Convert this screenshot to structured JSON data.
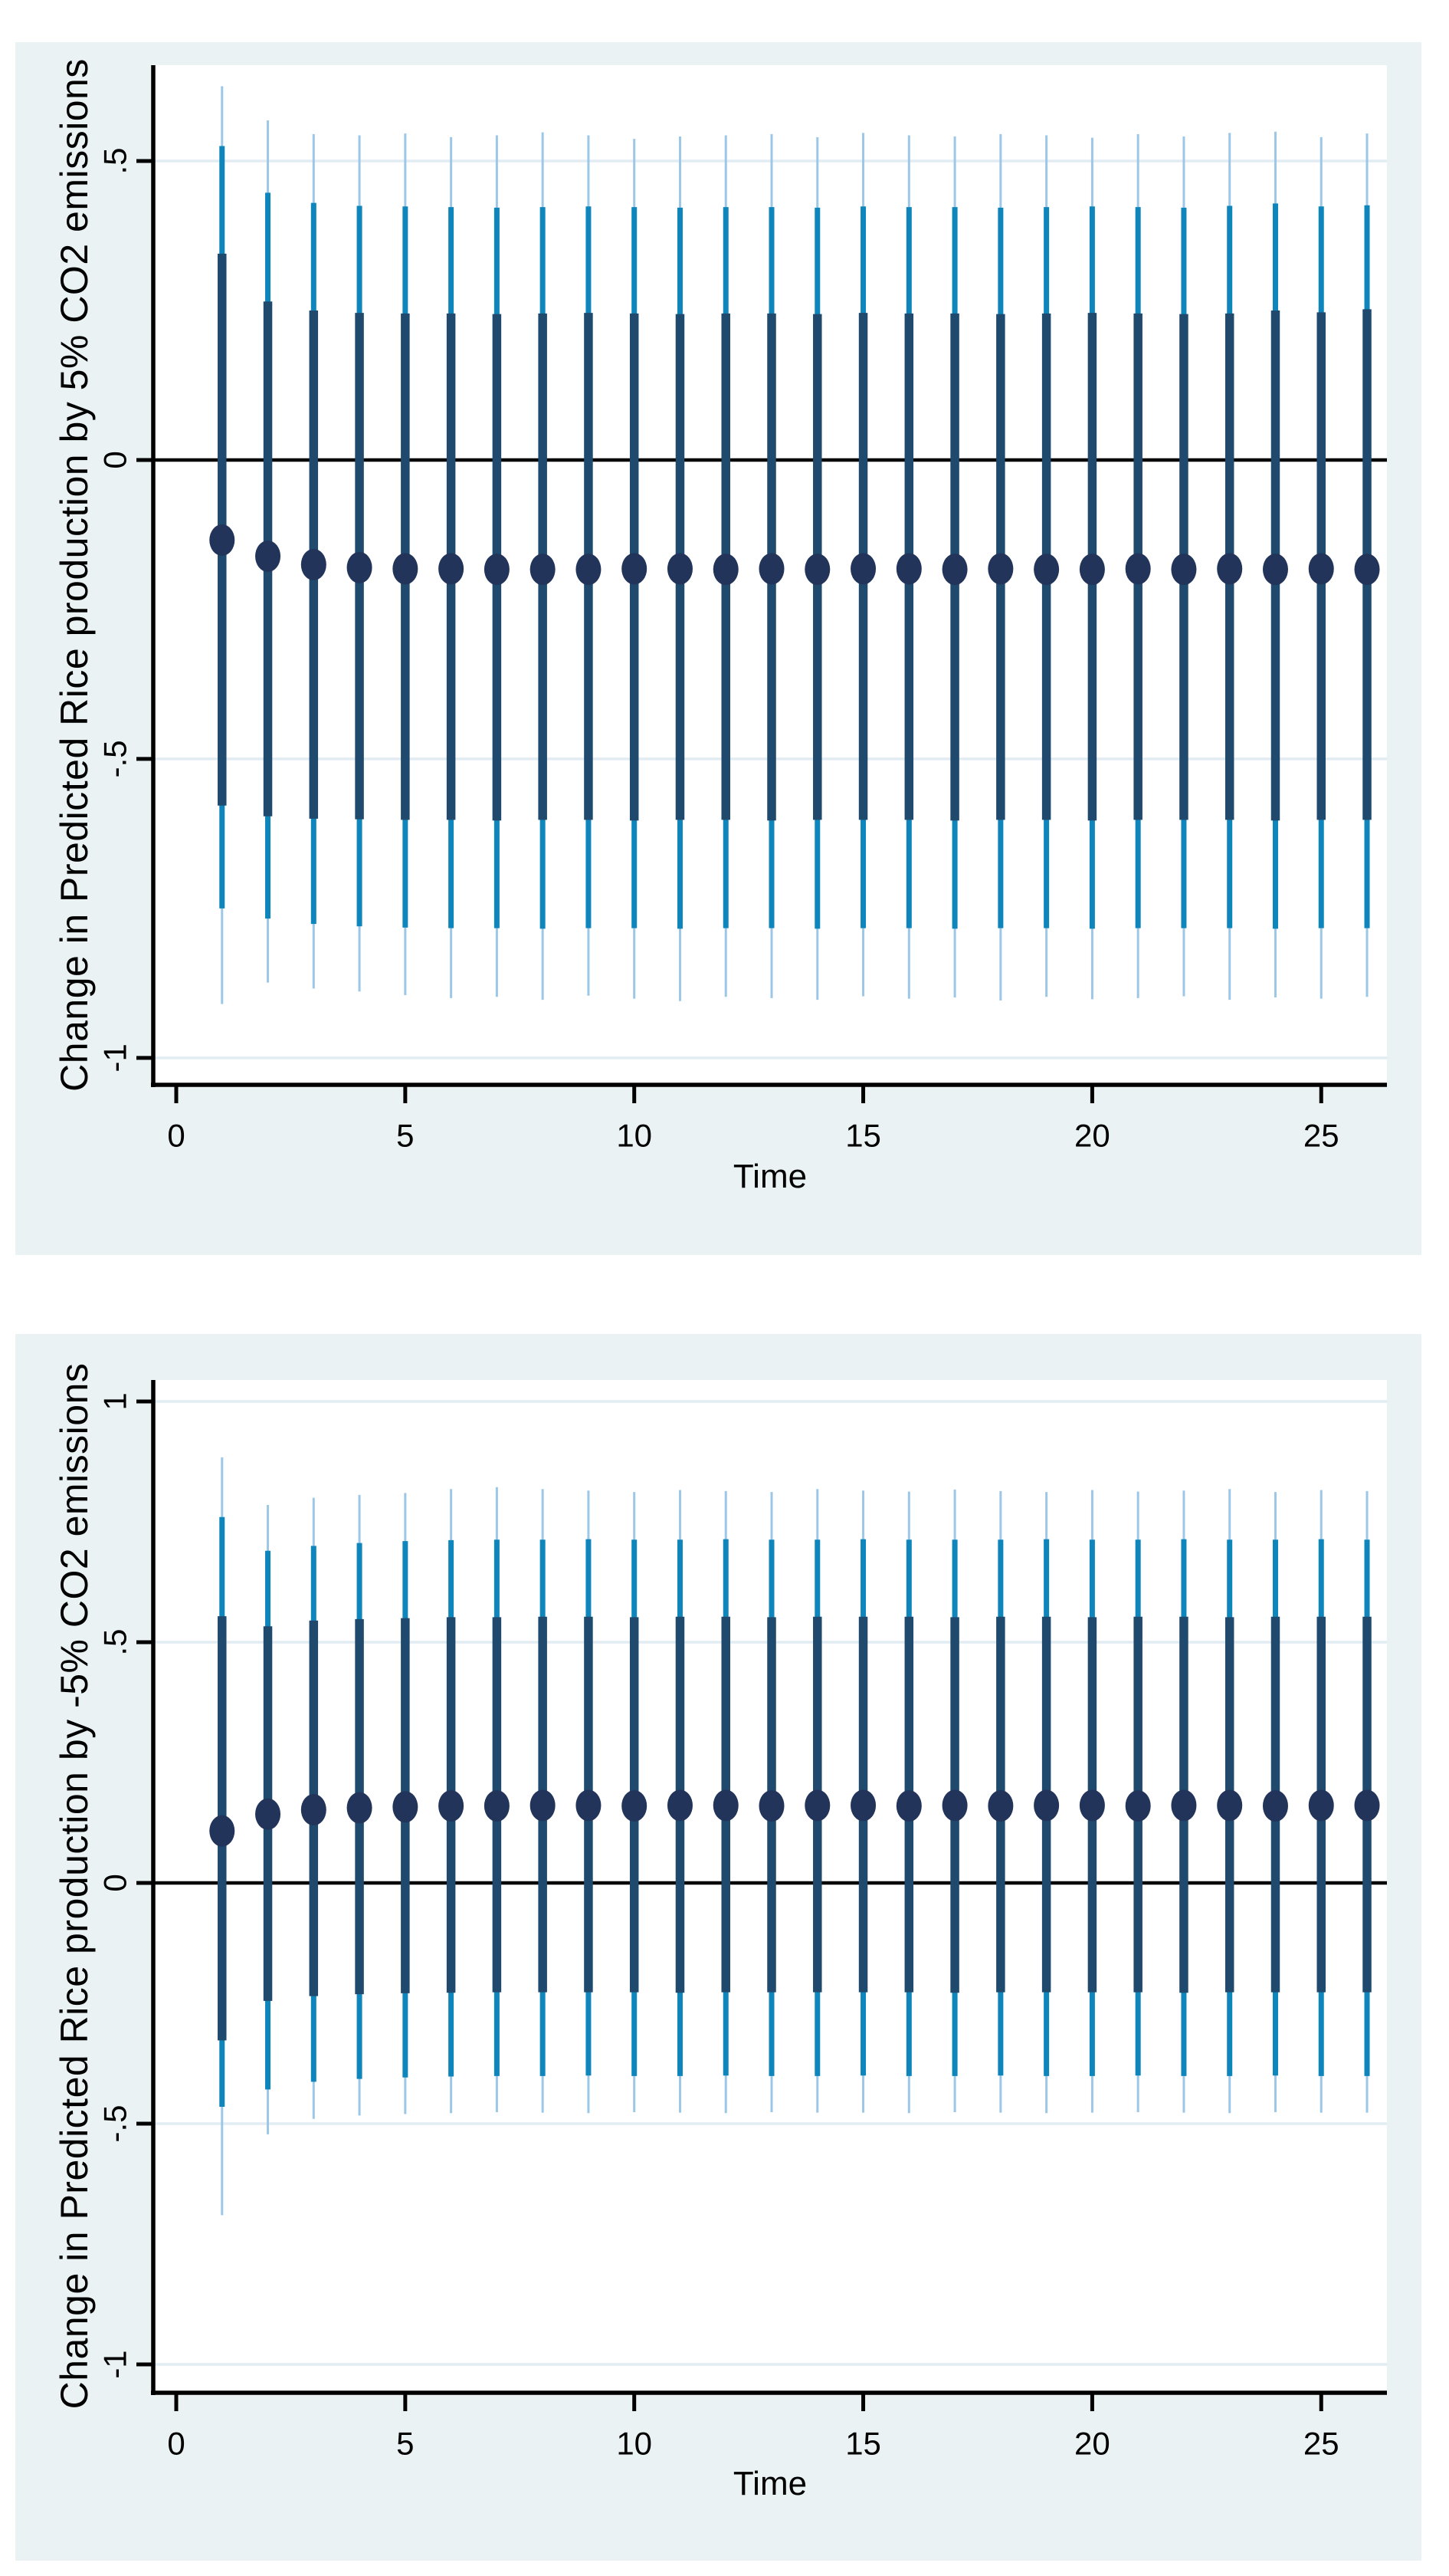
{
  "page": {
    "background": "#ffffff"
  },
  "colors": {
    "figure_bg": "#eaf2f3",
    "plot_bg": "#ffffff",
    "gridline": "#e2ecf3",
    "outer_ci": "#9cc7e7",
    "mid_ci": "#0e85bb",
    "inner_ci": "#1f4a6d",
    "point": "#22345a",
    "axis": "#000000",
    "zero_line": "#000000",
    "text": "#000000"
  },
  "chart_data": [
    {
      "type": "scatter",
      "subtype": "point-estimate-with-nested-confidence-intervals",
      "title": "",
      "ylabel": "Change in Predicted Rice production by 5% CO2 emissions",
      "xlabel": "Time",
      "grid": true,
      "legend": "none",
      "ylim": [
        0.6603,
        -1.0451
      ],
      "xlim": [
        -0.5,
        26.43
      ],
      "y_ticks": [
        {
          "label": ".5",
          "value": 0.5
        },
        {
          "label": "0",
          "value": 0
        },
        {
          "label": "-.5",
          "value": -0.5
        },
        {
          "label": "-1",
          "value": -1
        }
      ],
      "x_ticks": [
        {
          "label": "0",
          "value": 0
        },
        {
          "label": "5",
          "value": 5
        },
        {
          "label": "10",
          "value": 10
        },
        {
          "label": "15",
          "value": 15
        },
        {
          "label": "20",
          "value": 20
        },
        {
          "label": "25",
          "value": 25
        }
      ],
      "zero_line": 0,
      "x": [
        1,
        2,
        3,
        4,
        5,
        6,
        7,
        8,
        9,
        10,
        11,
        12,
        13,
        14,
        15,
        16,
        17,
        18,
        19,
        20,
        21,
        22,
        23,
        24,
        25,
        26
      ],
      "point": [
        -0.134,
        -0.161,
        -0.175,
        -0.18,
        -0.182,
        -0.182,
        -0.183,
        -0.183,
        -0.183,
        -0.182,
        -0.182,
        -0.183,
        -0.182,
        -0.183,
        -0.182,
        -0.182,
        -0.183,
        -0.182,
        -0.183,
        -0.183,
        -0.182,
        -0.183,
        -0.182,
        -0.183,
        -0.182,
        -0.183
      ],
      "inner_hi": [
        0.345,
        0.265,
        0.25,
        0.246,
        0.245,
        0.245,
        0.244,
        0.245,
        0.246,
        0.245,
        0.244,
        0.245,
        0.245,
        0.244,
        0.246,
        0.245,
        0.245,
        0.244,
        0.245,
        0.246,
        0.245,
        0.244,
        0.245,
        0.25,
        0.247,
        0.252
      ],
      "inner_lo": [
        -0.578,
        -0.596,
        -0.6,
        -0.601,
        -0.602,
        -0.602,
        -0.603,
        -0.602,
        -0.602,
        -0.603,
        -0.602,
        -0.602,
        -0.603,
        -0.602,
        -0.602,
        -0.602,
        -0.603,
        -0.602,
        -0.602,
        -0.603,
        -0.602,
        -0.602,
        -0.602,
        -0.603,
        -0.602,
        -0.602
      ],
      "mid_hi": [
        0.525,
        0.447,
        0.43,
        0.425,
        0.424,
        0.423,
        0.422,
        0.423,
        0.424,
        0.423,
        0.422,
        0.423,
        0.423,
        0.422,
        0.424,
        0.423,
        0.423,
        0.422,
        0.423,
        0.424,
        0.423,
        0.422,
        0.425,
        0.429,
        0.424,
        0.426
      ],
      "mid_lo": [
        -0.75,
        -0.767,
        -0.776,
        -0.78,
        -0.782,
        -0.783,
        -0.783,
        -0.784,
        -0.783,
        -0.783,
        -0.784,
        -0.783,
        -0.783,
        -0.784,
        -0.783,
        -0.783,
        -0.784,
        -0.783,
        -0.783,
        -0.784,
        -0.783,
        -0.783,
        -0.783,
        -0.784,
        -0.783,
        -0.783
      ],
      "outer_hi": [
        0.625,
        0.568,
        0.545,
        0.543,
        0.546,
        0.54,
        0.543,
        0.548,
        0.543,
        0.537,
        0.541,
        0.543,
        0.545,
        0.54,
        0.547,
        0.543,
        0.541,
        0.545,
        0.543,
        0.539,
        0.545,
        0.541,
        0.547,
        0.549,
        0.54,
        0.546
      ],
      "outer_lo": [
        -0.91,
        -0.874,
        -0.884,
        -0.889,
        -0.895,
        -0.9,
        -0.898,
        -0.903,
        -0.896,
        -0.901,
        -0.905,
        -0.898,
        -0.9,
        -0.903,
        -0.897,
        -0.901,
        -0.899,
        -0.904,
        -0.898,
        -0.902,
        -0.9,
        -0.897,
        -0.903,
        -0.899,
        -0.901,
        -0.898
      ]
    },
    {
      "type": "scatter",
      "subtype": "point-estimate-with-nested-confidence-intervals",
      "title": "",
      "ylabel": "Change in Predicted Rice production by -5% CO2 emissions",
      "xlabel": "Time",
      "grid": true,
      "legend": "none",
      "ylim": [
        1.0446,
        -1.0589
      ],
      "xlim": [
        -0.5,
        26.43
      ],
      "y_ticks": [
        {
          "label": "1",
          "value": 1
        },
        {
          "label": ".5",
          "value": 0.5
        },
        {
          "label": "0",
          "value": 0
        },
        {
          "label": "-.5",
          "value": -0.5
        },
        {
          "label": "-1",
          "value": -1
        }
      ],
      "x_ticks": [
        {
          "label": "0",
          "value": 0
        },
        {
          "label": "5",
          "value": 5
        },
        {
          "label": "10",
          "value": 10
        },
        {
          "label": "15",
          "value": 15
        },
        {
          "label": "20",
          "value": 20
        },
        {
          "label": "25",
          "value": 25
        }
      ],
      "zero_line": 0,
      "x": [
        1,
        2,
        3,
        4,
        5,
        6,
        7,
        8,
        9,
        10,
        11,
        12,
        13,
        14,
        15,
        16,
        17,
        18,
        19,
        20,
        21,
        22,
        23,
        24,
        25,
        26
      ],
      "point": [
        0.108,
        0.143,
        0.152,
        0.156,
        0.158,
        0.16,
        0.16,
        0.161,
        0.161,
        0.16,
        0.161,
        0.161,
        0.16,
        0.161,
        0.161,
        0.16,
        0.161,
        0.16,
        0.161,
        0.161,
        0.16,
        0.161,
        0.161,
        0.16,
        0.161,
        0.161
      ],
      "inner_hi": [
        0.554,
        0.533,
        0.545,
        0.548,
        0.55,
        0.552,
        0.552,
        0.553,
        0.553,
        0.552,
        0.553,
        0.553,
        0.552,
        0.553,
        0.553,
        0.553,
        0.552,
        0.553,
        0.553,
        0.552,
        0.553,
        0.553,
        0.552,
        0.553,
        0.553,
        0.553
      ],
      "inner_lo": [
        -0.327,
        -0.245,
        -0.235,
        -0.231,
        -0.229,
        -0.228,
        -0.227,
        -0.227,
        -0.227,
        -0.227,
        -0.228,
        -0.227,
        -0.227,
        -0.227,
        -0.227,
        -0.227,
        -0.228,
        -0.227,
        -0.227,
        -0.227,
        -0.227,
        -0.228,
        -0.227,
        -0.227,
        -0.227,
        -0.227
      ],
      "mid_hi": [
        0.76,
        0.69,
        0.7,
        0.706,
        0.71,
        0.712,
        0.713,
        0.713,
        0.714,
        0.713,
        0.713,
        0.714,
        0.713,
        0.713,
        0.714,
        0.713,
        0.713,
        0.713,
        0.714,
        0.713,
        0.713,
        0.714,
        0.713,
        0.713,
        0.714,
        0.713
      ],
      "mid_lo": [
        -0.465,
        -0.429,
        -0.413,
        -0.407,
        -0.404,
        -0.402,
        -0.401,
        -0.401,
        -0.4,
        -0.401,
        -0.401,
        -0.4,
        -0.401,
        -0.401,
        -0.4,
        -0.401,
        -0.401,
        -0.4,
        -0.401,
        -0.401,
        -0.4,
        -0.401,
        -0.401,
        -0.4,
        -0.401,
        -0.401
      ],
      "outer_hi": [
        0.884,
        0.785,
        0.8,
        0.806,
        0.81,
        0.818,
        0.822,
        0.818,
        0.815,
        0.812,
        0.816,
        0.814,
        0.812,
        0.818,
        0.815,
        0.813,
        0.817,
        0.814,
        0.812,
        0.816,
        0.813,
        0.815,
        0.818,
        0.812,
        0.816,
        0.814
      ],
      "outer_lo": [
        -0.69,
        -0.522,
        -0.49,
        -0.483,
        -0.48,
        -0.478,
        -0.476,
        -0.477,
        -0.478,
        -0.476,
        -0.477,
        -0.478,
        -0.476,
        -0.477,
        -0.477,
        -0.478,
        -0.476,
        -0.477,
        -0.478,
        -0.477,
        -0.476,
        -0.477,
        -0.478,
        -0.476,
        -0.477,
        -0.477
      ]
    }
  ]
}
